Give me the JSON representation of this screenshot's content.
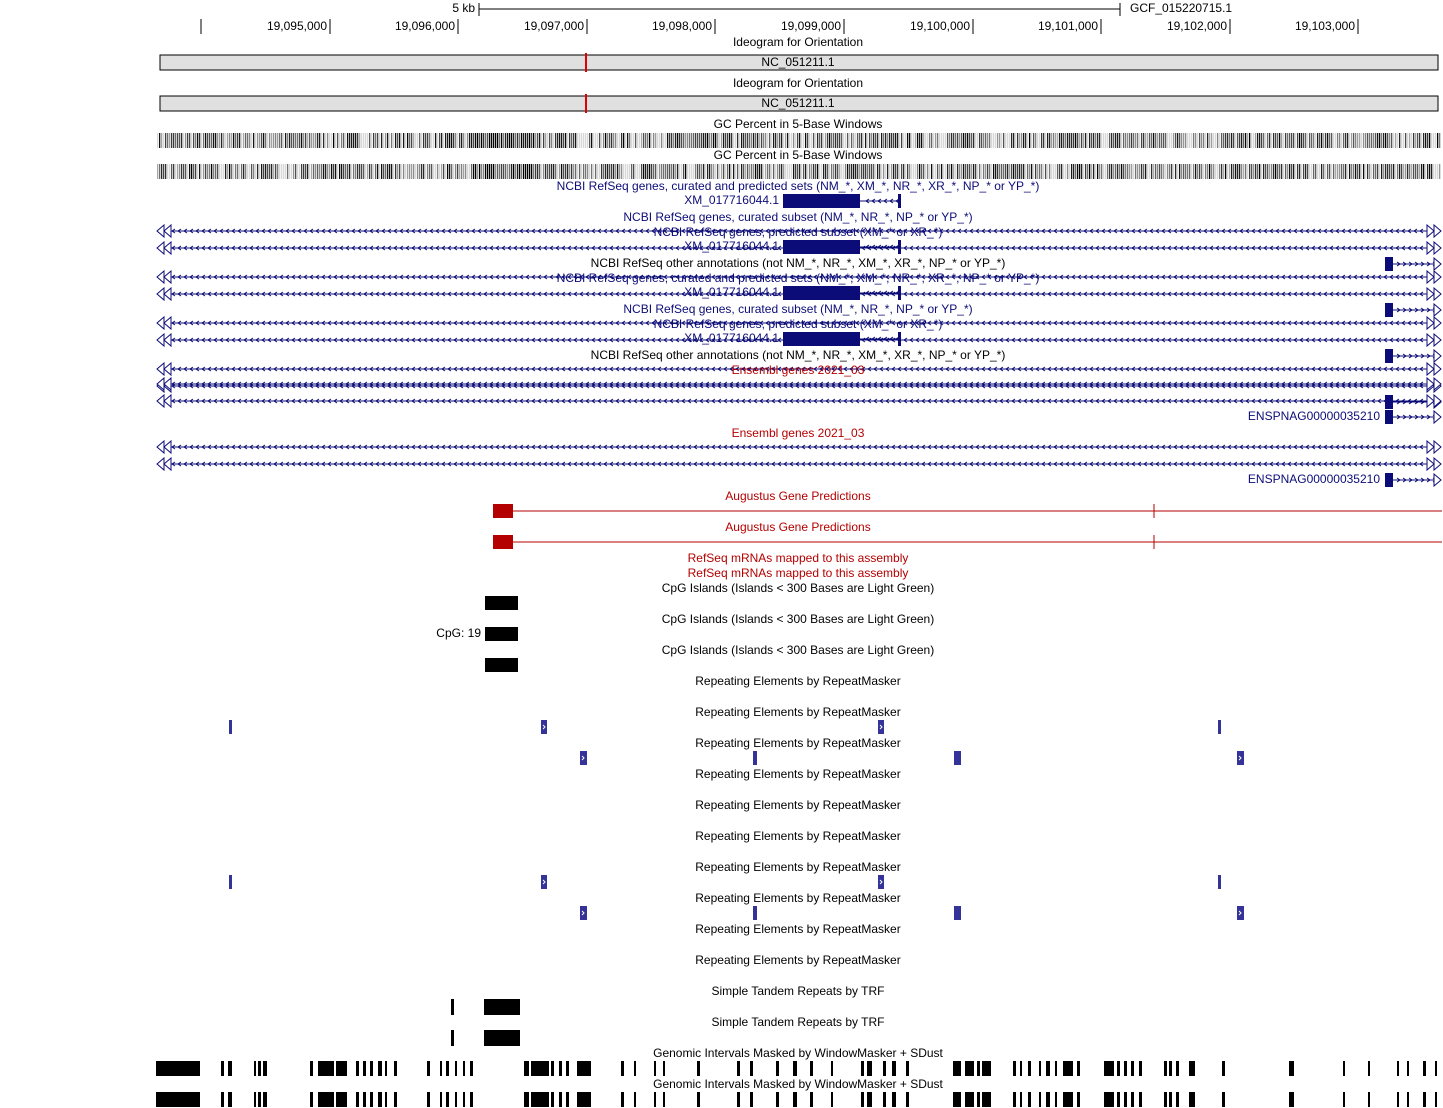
{
  "ruler": {
    "scale_label": "5 kb",
    "assembly": "GCF_015220715.1",
    "positions": [
      "19,095,000",
      "19,096,000",
      "19,097,000",
      "19,098,000",
      "19,099,000",
      "19,100,000",
      "19,101,000",
      "19,102,000",
      "19,103,000"
    ]
  },
  "tracks": [
    {
      "title": "Ideogram for Orientation",
      "color": "#000000",
      "label": "NC_051211.1"
    },
    {
      "title": "Ideogram for Orientation",
      "color": "#000000",
      "label": "NC_051211.1"
    },
    {
      "title": "GC Percent in 5-Base Windows",
      "color": "#000000"
    },
    {
      "title": "GC Percent in 5-Base Windows",
      "color": "#000000"
    },
    {
      "title": "NCBI RefSeq genes, curated and predicted sets (NM_*, XM_*, NR_*, XR_*, NP_* or YP_*)",
      "color": "#0c0c78",
      "label": "XM_017716044.1"
    },
    {
      "title": "NCBI RefSeq genes, curated subset (NM_*, NR_*, NP_* or YP_*)",
      "color": "#0c0c78"
    },
    {
      "title": "NCBI RefSeq genes, predicted subset (XM_* or XR_*)",
      "color": "#0c0c78",
      "label": "XM_017716044.1"
    },
    {
      "title": "NCBI RefSeq other annotations (not NM_*, NR_*, XM_*, XR_*, NP_* or YP_*)",
      "color": "#000000"
    },
    {
      "title": "NCBI RefSeq genes, curated and predicted sets (NM_*, XM_*, NR_*, XR_*, NP_* or YP_*)",
      "color": "#0c0c78",
      "label": "XM_017716044.1"
    },
    {
      "title": "NCBI RefSeq genes, curated subset (NM_*, NR_*, NP_* or YP_*)",
      "color": "#0c0c78"
    },
    {
      "title": "NCBI RefSeq genes, predicted subset (XM_* or XR_*)",
      "color": "#0c0c78",
      "label": "XM_017716044.1"
    },
    {
      "title": "NCBI RefSeq other annotations (not NM_*, NR_*, XM_*, XR_*, NP_* or YP_*)",
      "color": "#000000"
    },
    {
      "title": "Ensembl genes 2021_03",
      "color": "#b40000",
      "label": "ENSPNAG00000035210"
    },
    {
      "title": "Ensembl genes 2021_03",
      "color": "#b40000",
      "label": "ENSPNAG00000035210"
    },
    {
      "title": "Augustus Gene Predictions",
      "color": "#b40000"
    },
    {
      "title": "Augustus Gene Predictions",
      "color": "#b40000"
    },
    {
      "title": "RefSeq mRNAs mapped to this assembly",
      "color": "#b40000"
    },
    {
      "title": "RefSeq mRNAs mapped to this assembly",
      "color": "#b40000"
    },
    {
      "title": "CpG Islands (Islands < 300 Bases are Light Green)",
      "color": "#000000"
    },
    {
      "title": "CpG Islands (Islands < 300 Bases are Light Green)",
      "color": "#000000",
      "label": "CpG: 19"
    },
    {
      "title": "CpG Islands (Islands < 300 Bases are Light Green)",
      "color": "#000000"
    },
    {
      "title": "Repeating Elements by RepeatMasker",
      "color": "#000000"
    },
    {
      "title": "Repeating Elements by RepeatMasker",
      "color": "#000000"
    },
    {
      "title": "Repeating Elements by RepeatMasker",
      "color": "#000000"
    },
    {
      "title": "Repeating Elements by RepeatMasker",
      "color": "#000000"
    },
    {
      "title": "Repeating Elements by RepeatMasker",
      "color": "#000000"
    },
    {
      "title": "Repeating Elements by RepeatMasker",
      "color": "#000000"
    },
    {
      "title": "Repeating Elements by RepeatMasker",
      "color": "#000000"
    },
    {
      "title": "Repeating Elements by RepeatMasker",
      "color": "#000000"
    },
    {
      "title": "Repeating Elements by RepeatMasker",
      "color": "#000000"
    },
    {
      "title": "Repeating Elements by RepeatMasker",
      "color": "#000000"
    },
    {
      "title": "Simple Tandem Repeats by TRF",
      "color": "#000000"
    },
    {
      "title": "Simple Tandem Repeats by TRF",
      "color": "#000000"
    },
    {
      "title": "Genomic Intervals Masked by WindowMasker + SDust",
      "color": "#000000"
    },
    {
      "title": "Genomic Intervals Masked by WindowMasker + SDust",
      "color": "#000000"
    }
  ]
}
